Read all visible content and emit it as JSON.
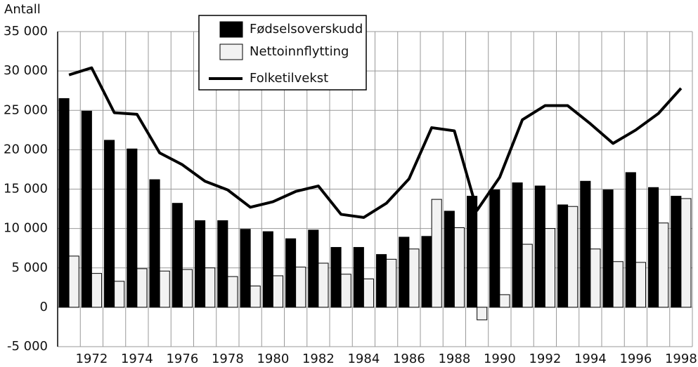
{
  "chart_data": {
    "type": "bar_line",
    "y_label": "Antall",
    "categories": [
      null,
      "1972",
      null,
      "1974",
      null,
      "1976",
      null,
      "1978",
      null,
      "1980",
      null,
      "1982",
      null,
      "1984",
      null,
      "1986",
      null,
      "1988",
      null,
      "1990",
      null,
      "1992",
      null,
      "1994",
      null,
      "1996",
      null,
      "1998"
    ],
    "series": [
      {
        "name": "Fødselsoverskudd",
        "kind": "bar",
        "color": "#000000",
        "values": [
          26500,
          24900,
          21200,
          20100,
          16200,
          13200,
          11000,
          11000,
          9900,
          9600,
          8700,
          9800,
          7600,
          7600,
          6700,
          8900,
          9000,
          12200,
          14100,
          14900,
          15800,
          15400,
          13000,
          16000,
          14900,
          17100,
          15200,
          14100
        ]
      },
      {
        "name": "Nettoinnflytting",
        "kind": "bar",
        "color": "#f2f2f2",
        "values": [
          6500,
          4300,
          3300,
          4900,
          4600,
          4800,
          5000,
          3900,
          2700,
          4000,
          5100,
          5600,
          4200,
          3600,
          6100,
          7400,
          13700,
          10100,
          -1600,
          1600,
          8000,
          10000,
          12800,
          7400,
          5800,
          5700,
          10700,
          13800
        ]
      },
      {
        "name": "Folketilvekst",
        "kind": "line",
        "color": "#000000",
        "values": [
          29500,
          30400,
          24700,
          24500,
          19600,
          18100,
          16000,
          14900,
          12700,
          13400,
          14700,
          15400,
          11800,
          11400,
          13200,
          16300,
          22800,
          22400,
          12300,
          16500,
          23800,
          25600,
          25600,
          23300,
          20800,
          22500,
          24600,
          27800
        ]
      }
    ],
    "ylim": [
      -5000,
      35000
    ],
    "yticks": [
      {
        "value": -5000,
        "label": "-5 000"
      },
      0,
      {
        "value": 5000,
        "label": "5 000"
      },
      {
        "value": 10000,
        "label": "10 000"
      },
      {
        "value": 15000,
        "label": "15 000"
      },
      {
        "value": 20000,
        "label": "20 000"
      },
      {
        "value": 25000,
        "label": "25 000"
      },
      {
        "value": 30000,
        "label": "30 000"
      },
      {
        "value": 35000,
        "label": "35 000"
      }
    ],
    "grid": true,
    "legend": "upper center"
  }
}
